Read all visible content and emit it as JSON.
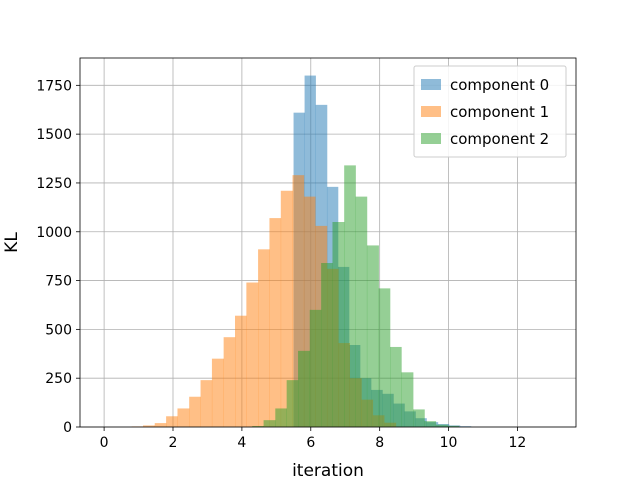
{
  "chart_data": {
    "type": "bar",
    "subtype": "overlapping-histogram",
    "title": "",
    "xlabel": "iteration",
    "ylabel": "KL",
    "xlim": [
      -0.7,
      13.7
    ],
    "ylim": [
      0,
      1890
    ],
    "x_ticks": [
      0,
      2,
      4,
      6,
      8,
      10,
      12
    ],
    "y_ticks": [
      0,
      250,
      500,
      750,
      1000,
      1250,
      1500,
      1750
    ],
    "grid": true,
    "legend_position": "top-right",
    "bar_opacity": 0.5,
    "series": [
      {
        "name": "component 0",
        "color": "#1f77b4",
        "bins": [
          [
            5.5,
            5.82,
            1610
          ],
          [
            5.82,
            6.14,
            1800
          ],
          [
            6.14,
            6.47,
            1650
          ],
          [
            6.47,
            6.79,
            1230
          ],
          [
            6.79,
            7.11,
            820
          ],
          [
            7.11,
            7.43,
            420
          ],
          [
            7.43,
            7.75,
            250
          ],
          [
            7.75,
            8.08,
            190
          ],
          [
            8.08,
            8.4,
            170
          ],
          [
            8.4,
            8.72,
            120
          ],
          [
            8.72,
            9.04,
            80
          ],
          [
            9.04,
            9.36,
            45
          ],
          [
            9.36,
            9.69,
            25
          ],
          [
            9.69,
            10.01,
            15
          ],
          [
            10.01,
            10.33,
            8
          ],
          [
            10.33,
            10.65,
            4
          ]
        ]
      },
      {
        "name": "component 1",
        "color": "#ff7f0e",
        "bins": [
          [
            0.8,
            1.13,
            3
          ],
          [
            1.13,
            1.47,
            8
          ],
          [
            1.47,
            1.8,
            20
          ],
          [
            1.8,
            2.13,
            55
          ],
          [
            2.13,
            2.47,
            95
          ],
          [
            2.47,
            2.8,
            155
          ],
          [
            2.8,
            3.13,
            240
          ],
          [
            3.13,
            3.47,
            350
          ],
          [
            3.47,
            3.8,
            460
          ],
          [
            3.8,
            4.13,
            570
          ],
          [
            4.13,
            4.47,
            740
          ],
          [
            4.47,
            4.8,
            910
          ],
          [
            4.8,
            5.13,
            1070
          ],
          [
            5.13,
            5.47,
            1210
          ],
          [
            5.47,
            5.8,
            1290
          ],
          [
            5.8,
            6.13,
            1180
          ],
          [
            6.13,
            6.47,
            1030
          ],
          [
            6.47,
            6.8,
            810
          ],
          [
            6.8,
            7.13,
            430
          ],
          [
            7.13,
            7.47,
            250
          ],
          [
            7.47,
            7.8,
            140
          ],
          [
            7.8,
            8.13,
            60
          ],
          [
            8.13,
            8.47,
            22
          ]
        ]
      },
      {
        "name": "component 2",
        "color": "#2ca02c",
        "bins": [
          [
            4.3,
            4.63,
            5
          ],
          [
            4.63,
            4.97,
            35
          ],
          [
            4.97,
            5.3,
            95
          ],
          [
            5.3,
            5.63,
            240
          ],
          [
            5.63,
            5.97,
            390
          ],
          [
            5.97,
            6.3,
            600
          ],
          [
            6.3,
            6.63,
            840
          ],
          [
            6.63,
            6.97,
            1050
          ],
          [
            6.97,
            7.3,
            1340
          ],
          [
            7.3,
            7.63,
            1180
          ],
          [
            7.63,
            7.97,
            930
          ],
          [
            7.97,
            8.3,
            710
          ],
          [
            8.3,
            8.63,
            410
          ],
          [
            8.63,
            8.97,
            280
          ],
          [
            8.97,
            9.3,
            90
          ],
          [
            9.3,
            9.63,
            30
          ],
          [
            9.63,
            9.97,
            12
          ],
          [
            9.97,
            10.3,
            6
          ]
        ]
      }
    ]
  }
}
